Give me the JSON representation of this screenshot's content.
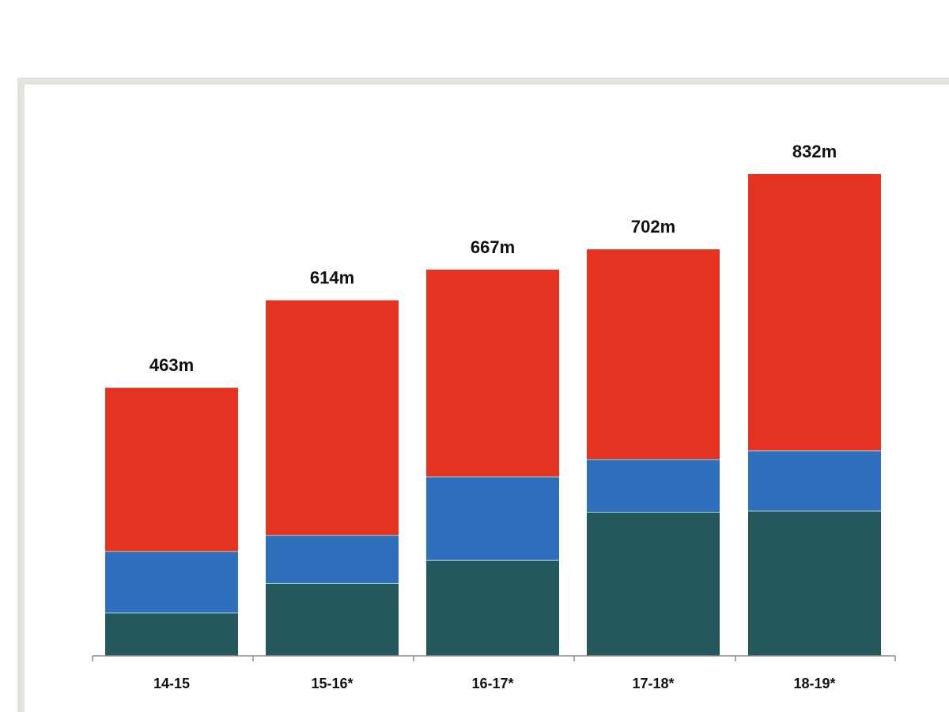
{
  "chart_data": {
    "type": "bar",
    "stacked": true,
    "title": "",
    "xlabel": "",
    "ylabel": "",
    "categories": [
      "14-15",
      "15-16*",
      "16-17*",
      "17-18*",
      "18-19*"
    ],
    "totals": [
      463,
      614,
      667,
      702,
      832
    ],
    "total_labels": [
      "463m",
      "614m",
      "667m",
      "702m",
      "832m"
    ],
    "series": [
      {
        "values": [
          74,
          125,
          165,
          248,
          250
        ],
        "color": "#24575c"
      },
      {
        "values": [
          106,
          83,
          144,
          91,
          104
        ],
        "color": "#2f6fbb"
      },
      {
        "values": [
          283,
          406,
          358,
          363,
          478
        ],
        "color": "#e53322"
      }
    ],
    "ylim": [
      0,
      832
    ],
    "grid": false,
    "legend": "none"
  }
}
